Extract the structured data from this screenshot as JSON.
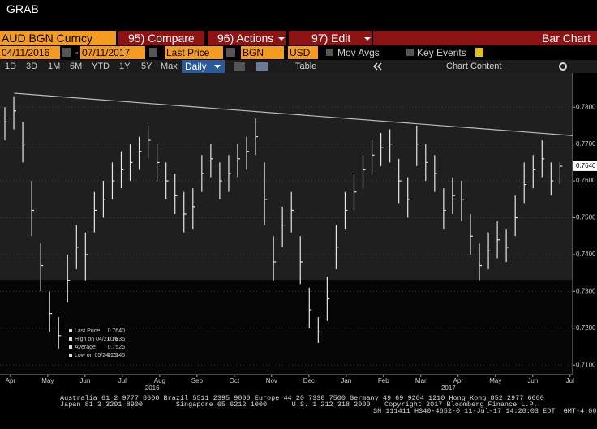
{
  "header": {
    "title": "GRAB"
  },
  "toolbar": {
    "security": "AUD BGN Curncy",
    "compare": "95) Compare",
    "actions": "96) Actions",
    "edit": "97) Edit",
    "view": "Bar Chart",
    "start_date": "04/11/2016",
    "dash": "-",
    "end_date": "07/11/2017",
    "field": "Last Price",
    "source": "BGN",
    "currency": "USD",
    "mov_avgs": "Mov Avgs",
    "key_events": "Key Events",
    "periods": [
      "1D",
      "3D",
      "1M",
      "6M",
      "YTD",
      "1Y",
      "5Y",
      "Max"
    ],
    "frequency": "Daily",
    "table": "Table",
    "chart_content": "Chart Content"
  },
  "chart_data": {
    "type": "ohlc",
    "color": "#e6e6e6",
    "x": [
      0.35,
      0.59,
      0.83,
      1.07,
      1.31,
      1.55,
      1.79,
      2.03,
      2.27,
      2.51,
      2.75,
      2.99,
      3.23,
      3.47,
      3.71,
      3.95,
      4.19,
      4.43,
      4.67,
      4.91,
      5.15,
      5.39,
      5.63,
      5.87,
      6.11,
      6.35,
      6.59,
      6.83,
      7.07,
      7.31,
      7.55,
      7.79,
      8.03,
      8.27,
      8.51,
      8.75,
      8.99,
      9.23,
      9.47,
      9.71,
      9.95,
      10.19,
      10.43,
      10.67,
      10.91,
      11.15,
      11.39,
      11.63,
      11.87,
      12.11,
      12.35,
      12.59,
      12.83,
      13.07,
      13.31,
      13.55,
      13.79,
      14.03,
      14.27,
      14.51,
      14.75,
      14.99,
      15.23
    ],
    "values": [
      0.776,
      0.779,
      0.77,
      0.752,
      0.737,
      0.724,
      0.718,
      0.733,
      0.742,
      0.74,
      0.752,
      0.755,
      0.76,
      0.763,
      0.765,
      0.768,
      0.771,
      0.765,
      0.76,
      0.756,
      0.751,
      0.753,
      0.762,
      0.766,
      0.76,
      0.762,
      0.766,
      0.768,
      0.772,
      0.755,
      0.738,
      0.748,
      0.752,
      0.738,
      0.725,
      0.719,
      0.728,
      0.742,
      0.752,
      0.757,
      0.763,
      0.767,
      0.769,
      0.77,
      0.76,
      0.755,
      0.77,
      0.765,
      0.762,
      0.752,
      0.756,
      0.755,
      0.745,
      0.737,
      0.741,
      0.744,
      0.742,
      0.75,
      0.759,
      0.763,
      0.766,
      0.76,
      0.764
    ],
    "high": [
      0.78,
      0.783,
      0.776,
      0.76,
      0.743,
      0.73,
      0.723,
      0.74,
      0.748,
      0.746,
      0.757,
      0.76,
      0.765,
      0.768,
      0.77,
      0.772,
      0.775,
      0.77,
      0.765,
      0.762,
      0.757,
      0.758,
      0.767,
      0.77,
      0.765,
      0.767,
      0.77,
      0.772,
      0.777,
      0.765,
      0.745,
      0.753,
      0.757,
      0.745,
      0.731,
      0.723,
      0.734,
      0.748,
      0.757,
      0.762,
      0.767,
      0.771,
      0.773,
      0.774,
      0.766,
      0.761,
      0.775,
      0.77,
      0.767,
      0.758,
      0.761,
      0.76,
      0.751,
      0.743,
      0.746,
      0.749,
      0.747,
      0.756,
      0.765,
      0.767,
      0.771,
      0.765,
      0.765
    ],
    "low": [
      0.771,
      0.774,
      0.765,
      0.745,
      0.73,
      0.719,
      0.7145,
      0.727,
      0.736,
      0.733,
      0.746,
      0.75,
      0.755,
      0.758,
      0.76,
      0.763,
      0.766,
      0.76,
      0.755,
      0.751,
      0.746,
      0.747,
      0.757,
      0.761,
      0.755,
      0.757,
      0.761,
      0.763,
      0.767,
      0.748,
      0.733,
      0.742,
      0.746,
      0.732,
      0.72,
      0.716,
      0.722,
      0.736,
      0.747,
      0.752,
      0.758,
      0.762,
      0.764,
      0.765,
      0.754,
      0.75,
      0.764,
      0.76,
      0.757,
      0.747,
      0.751,
      0.749,
      0.74,
      0.733,
      0.736,
      0.739,
      0.738,
      0.745,
      0.754,
      0.758,
      0.761,
      0.756,
      0.759
    ],
    "xlim": [
      0.22,
      15.57
    ],
    "xticks": [
      {
        "value": 0.5,
        "label": "Apr"
      },
      {
        "value": 1.5,
        "label": "May"
      },
      {
        "value": 2.5,
        "label": "Jun"
      },
      {
        "value": 3.5,
        "label": "Jul"
      },
      {
        "value": 4.5,
        "label": "Aug"
      },
      {
        "value": 5.5,
        "label": "Sep"
      },
      {
        "value": 6.5,
        "label": "Oct"
      },
      {
        "value": 7.5,
        "label": "Nov"
      },
      {
        "value": 8.5,
        "label": "Dec"
      },
      {
        "value": 9.5,
        "label": "Jan"
      },
      {
        "value": 10.5,
        "label": "Feb"
      },
      {
        "value": 11.5,
        "label": "Mar"
      },
      {
        "value": 12.5,
        "label": "Apr"
      },
      {
        "value": 13.5,
        "label": "May"
      },
      {
        "value": 14.5,
        "label": "Jun"
      },
      {
        "value": 15.5,
        "label": "Jul"
      }
    ],
    "year_labels": [
      {
        "value": 4.3,
        "label": "2016"
      },
      {
        "value": 12.24,
        "label": "2017"
      }
    ],
    "ylim": [
      0.7074,
      0.7893
    ],
    "yticks": [
      {
        "value": 0.71,
        "label": "0.7100"
      },
      {
        "value": 0.72,
        "label": "0.7200"
      },
      {
        "value": 0.73,
        "label": "0.7300"
      },
      {
        "value": 0.74,
        "label": "0.7400"
      },
      {
        "value": 0.75,
        "label": "0.7500"
      },
      {
        "value": 0.76,
        "label": "0.7600"
      },
      {
        "value": 0.77,
        "label": "0.7700"
      },
      {
        "value": 0.78,
        "label": "0.7800"
      }
    ],
    "trend_line": {
      "x": [
        0.6,
        15.57
      ],
      "values": [
        0.7838,
        0.7723
      ]
    },
    "last_price_tag": "0.7640",
    "legend": [
      {
        "label": "Last Price",
        "value": "0.7640"
      },
      {
        "label": "High on 04/21/16",
        "value": "0.7835"
      },
      {
        "label": "Average",
        "value": "0.7525"
      },
      {
        "label": "Low on 05/24/16",
        "value": "0.7145"
      }
    ]
  },
  "footer": {
    "lines": [
      "Australia 61 2 9777 8600 Brazil 5511 2395 9000 Europe 44 20 7330 7500 Germany 49 69 9204 1210 Hong Kong 852 2977 6000",
      "Japan 81 3 3201 8900        Singapore 65 6212 1000      U.S. 1 212 318 2000",
      "Copyright 2017 Bloomberg Finance L.P.",
      "SN 111411 H340-4652-0 11-Jul-17 14:20:03 EDT  GMT-4:00"
    ]
  }
}
